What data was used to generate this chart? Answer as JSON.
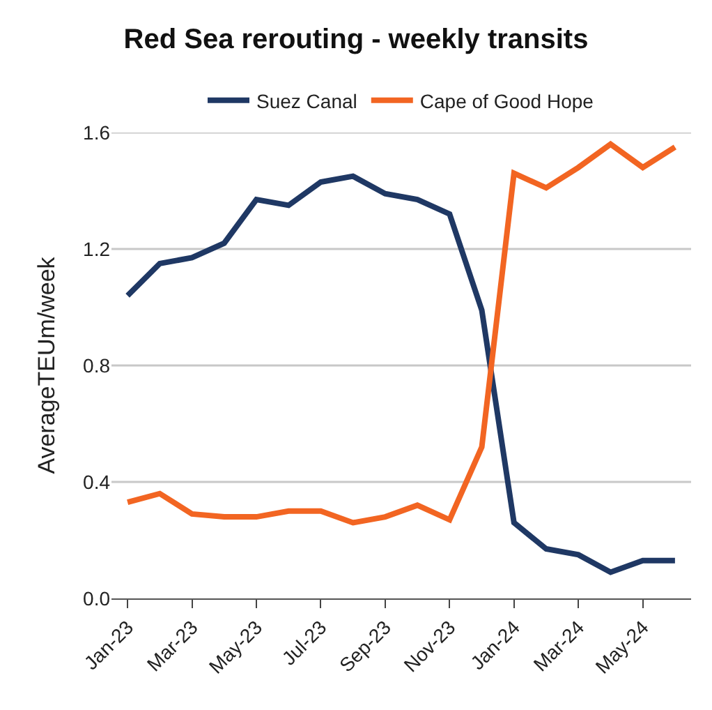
{
  "chart_data": {
    "type": "line",
    "title": "Red Sea rerouting - weekly transits",
    "ylabel": "AverageTEUm/week",
    "categories": [
      "Jan-23",
      null,
      "Mar-23",
      null,
      "May-23",
      null,
      "Jul-23",
      null,
      "Sep-23",
      null,
      "Nov-23",
      null,
      "Jan-24",
      null,
      "Mar-24",
      null,
      "May-24",
      null
    ],
    "series": [
      {
        "name": "Suez Canal",
        "color": "#1f3864",
        "values": [
          1.04,
          1.15,
          1.17,
          1.22,
          1.37,
          1.35,
          1.43,
          1.45,
          1.39,
          1.37,
          1.32,
          0.99,
          0.26,
          0.17,
          0.15,
          0.09,
          0.13,
          0.13
        ]
      },
      {
        "name": "Cape of Good Hope",
        "color": "#f26522",
        "values": [
          0.33,
          0.36,
          0.29,
          0.28,
          0.28,
          0.3,
          0.3,
          0.26,
          0.28,
          0.32,
          0.27,
          0.52,
          1.46,
          1.41,
          1.48,
          1.56,
          1.48,
          1.55
        ]
      }
    ],
    "ylim": [
      0,
      1.6
    ],
    "yticks": [
      {
        "value": 0,
        "label": "0.0"
      },
      {
        "value": 0.4,
        "label": "0.4"
      },
      {
        "value": 0.8,
        "label": "0.8"
      },
      {
        "value": 1.2,
        "label": "1.2"
      },
      {
        "value": 1.6,
        "label": "1.6"
      }
    ],
    "grid": "y",
    "legend": "top",
    "marker": "none",
    "line_style": "solid"
  }
}
